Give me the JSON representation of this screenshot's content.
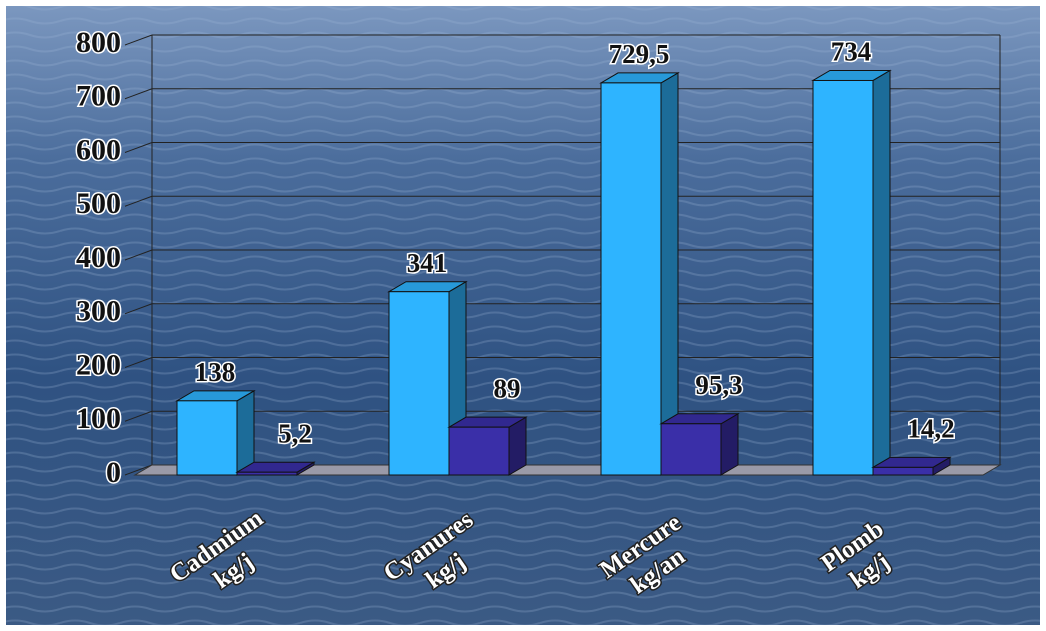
{
  "chart_data": {
    "type": "bar3d",
    "categories": [
      [
        "Cadmium",
        "kg/j"
      ],
      [
        "Cyanures",
        "kg/j"
      ],
      [
        "Mercure",
        "kg/an"
      ],
      [
        "Plomb",
        "kg/j"
      ]
    ],
    "series": [
      {
        "color": "#2eb4ff",
        "values": [
          138,
          341,
          729.5,
          734
        ],
        "value_labels": [
          "138",
          "341",
          "729,5",
          "734"
        ]
      },
      {
        "color": "#3a2fa8",
        "values": [
          5.2,
          89,
          95.3,
          14.2
        ],
        "value_labels": [
          "5,2",
          "89",
          "95,3",
          "14,2"
        ]
      }
    ],
    "ylim": [
      0,
      800
    ],
    "yticks": [
      0,
      100,
      200,
      300,
      400,
      500,
      600,
      700,
      800
    ],
    "grid": true
  }
}
